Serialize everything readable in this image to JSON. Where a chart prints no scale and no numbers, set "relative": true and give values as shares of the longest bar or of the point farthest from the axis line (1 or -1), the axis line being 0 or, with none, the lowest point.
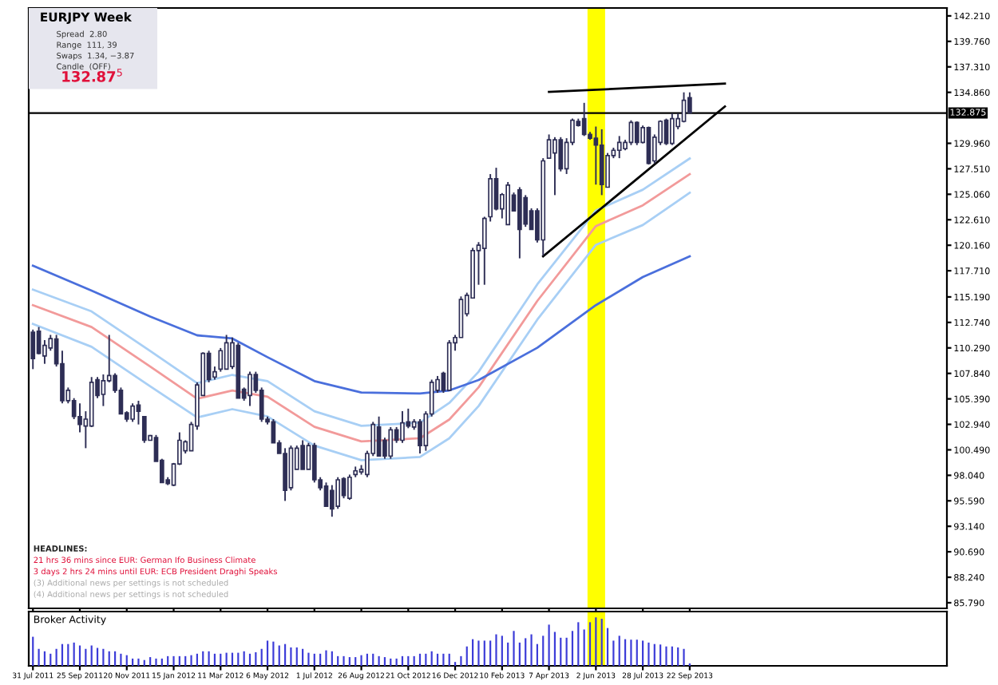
{
  "chart_data": [
    {
      "type": "candlestick",
      "title": "EURJPY Week",
      "color": "#2e2e55",
      "x": [
        "2011-07-31",
        "2011-08-07",
        "2011-08-14",
        "2011-08-21",
        "2011-08-28",
        "2011-09-04",
        "2011-09-11",
        "2011-09-18",
        "2011-09-25",
        "2011-10-02",
        "2011-10-09",
        "2011-10-16",
        "2011-10-23",
        "2011-10-30",
        "2011-11-06",
        "2011-11-13",
        "2011-11-20",
        "2011-11-27",
        "2011-12-04",
        "2011-12-11",
        "2011-12-18",
        "2011-12-25",
        "2012-01-01",
        "2012-01-08",
        "2012-01-15",
        "2012-01-22",
        "2012-01-29",
        "2012-02-05",
        "2012-02-12",
        "2012-02-19",
        "2012-02-26",
        "2012-03-04",
        "2012-03-11",
        "2012-03-18",
        "2012-03-25",
        "2012-04-01",
        "2012-04-08",
        "2012-04-15",
        "2012-04-22",
        "2012-04-29",
        "2012-05-06",
        "2012-05-13",
        "2012-05-20",
        "2012-05-27",
        "2012-06-03",
        "2012-06-10",
        "2012-06-17",
        "2012-06-24",
        "2012-07-01",
        "2012-07-08",
        "2012-07-15",
        "2012-07-22",
        "2012-07-29",
        "2012-08-05",
        "2012-08-12",
        "2012-08-19",
        "2012-08-26",
        "2012-09-02",
        "2012-09-09",
        "2012-09-16",
        "2012-09-23",
        "2012-09-30",
        "2012-10-07",
        "2012-10-14",
        "2012-10-21",
        "2012-10-28",
        "2012-11-04",
        "2012-11-11",
        "2012-11-18",
        "2012-11-25",
        "2012-12-02",
        "2012-12-09",
        "2012-12-16",
        "2012-12-23",
        "2012-12-30",
        "2013-01-06",
        "2013-01-13",
        "2013-01-20",
        "2013-01-27",
        "2013-02-03",
        "2013-02-10",
        "2013-02-17",
        "2013-02-24",
        "2013-03-03",
        "2013-03-10",
        "2013-03-17",
        "2013-03-24",
        "2013-03-31",
        "2013-04-07",
        "2013-04-14",
        "2013-04-21",
        "2013-04-28",
        "2013-05-05",
        "2013-05-12",
        "2013-05-19",
        "2013-05-26",
        "2013-06-02",
        "2013-06-09",
        "2013-06-16",
        "2013-06-23",
        "2013-06-30",
        "2013-07-07",
        "2013-07-14",
        "2013-07-21",
        "2013-07-28",
        "2013-08-04",
        "2013-08-11",
        "2013-08-18",
        "2013-08-25",
        "2013-09-01",
        "2013-09-08",
        "2013-09-15",
        "2013-09-22"
      ],
      "ohlc": [
        [
          111.8,
          112.05,
          108.25,
          109.26
        ],
        [
          111.9,
          112.3,
          109.67,
          109.77
        ],
        [
          109.52,
          111.04,
          108.76,
          110.53
        ],
        [
          110.28,
          111.54,
          110.02,
          111.19
        ],
        [
          111.14,
          111.54,
          108.5,
          108.76
        ],
        [
          108.76,
          110.02,
          104.96,
          105.21
        ],
        [
          105.21,
          106.48,
          104.96,
          106.22
        ],
        [
          105.21,
          105.46,
          103.44,
          103.69
        ],
        [
          103.69,
          104.96,
          102.17,
          102.93
        ],
        [
          102.78,
          104.2,
          100.65,
          103.44
        ],
        [
          102.78,
          107.49,
          102.68,
          106.98
        ],
        [
          107.24,
          107.49,
          105.46,
          105.72
        ],
        [
          105.82,
          107.74,
          104.7,
          107.14
        ],
        [
          107.14,
          111.54,
          106.98,
          107.64
        ],
        [
          107.64,
          107.85,
          105.97,
          106.22
        ],
        [
          106.22,
          106.48,
          103.94,
          103.94
        ],
        [
          104.04,
          104.2,
          103.18,
          103.44
        ],
        [
          103.44,
          104.96,
          103.18,
          104.7
        ],
        [
          104.8,
          105.21,
          102.93,
          104.2
        ],
        [
          103.69,
          103.69,
          101.16,
          101.41
        ],
        [
          101.41,
          101.92,
          101.41,
          101.86
        ],
        [
          101.66,
          101.92,
          99.38,
          99.38
        ],
        [
          99.48,
          99.63,
          97.35,
          97.35
        ],
        [
          97.61,
          97.86,
          97.1,
          97.25
        ],
        [
          97.1,
          99.23,
          97.0,
          99.13
        ],
        [
          99.13,
          102.17,
          99.03,
          101.41
        ],
        [
          100.4,
          101.41,
          100.14,
          101.26
        ],
        [
          100.4,
          103.18,
          100.4,
          102.93
        ],
        [
          102.78,
          106.98,
          102.42,
          106.73
        ],
        [
          105.72,
          109.87,
          105.72,
          109.77
        ],
        [
          109.77,
          110.02,
          106.98,
          107.24
        ],
        [
          107.49,
          108.5,
          107.24,
          108.0
        ],
        [
          108.25,
          110.28,
          108.0,
          110.02
        ],
        [
          108.25,
          111.54,
          108.25,
          110.78
        ],
        [
          108.5,
          111.29,
          108.25,
          110.78
        ],
        [
          110.53,
          110.78,
          105.46,
          105.46
        ],
        [
          106.32,
          106.48,
          105.21,
          105.46
        ],
        [
          105.72,
          108.0,
          104.7,
          107.74
        ],
        [
          107.74,
          108.0,
          105.97,
          106.22
        ],
        [
          106.22,
          106.48,
          103.18,
          103.44
        ],
        [
          103.44,
          103.69,
          102.93,
          103.18
        ],
        [
          103.18,
          103.44,
          101.16,
          101.16
        ],
        [
          101.16,
          101.41,
          100.14,
          100.14
        ],
        [
          100.14,
          100.65,
          95.58,
          96.59
        ],
        [
          96.85,
          100.9,
          96.59,
          100.65
        ],
        [
          98.62,
          100.9,
          98.62,
          100.65
        ],
        [
          100.9,
          101.41,
          98.62,
          98.62
        ],
        [
          98.62,
          101.16,
          98.62,
          100.9
        ],
        [
          100.9,
          101.16,
          97.35,
          97.61
        ],
        [
          97.61,
          97.86,
          96.59,
          96.85
        ],
        [
          97.0,
          97.35,
          95.07,
          95.07
        ],
        [
          96.59,
          97.1,
          94.06,
          94.82
        ],
        [
          95.07,
          97.86,
          94.82,
          97.61
        ],
        [
          97.71,
          97.86,
          95.83,
          96.09
        ],
        [
          95.83,
          98.11,
          95.68,
          97.86
        ],
        [
          98.11,
          98.88,
          97.86,
          98.47
        ],
        [
          98.37,
          99.03,
          98.11,
          98.62
        ],
        [
          98.11,
          100.4,
          97.86,
          100.14
        ],
        [
          100.14,
          103.18,
          99.89,
          102.93
        ],
        [
          102.68,
          103.69,
          99.89,
          99.89
        ],
        [
          101.41,
          101.66,
          99.63,
          99.89
        ],
        [
          99.89,
          102.68,
          99.63,
          102.42
        ],
        [
          102.42,
          102.68,
          101.16,
          101.41
        ],
        [
          101.41,
          104.2,
          101.16,
          103.08
        ],
        [
          103.18,
          104.45,
          102.57,
          102.78
        ],
        [
          102.68,
          103.44,
          102.42,
          103.18
        ],
        [
          103.18,
          103.44,
          100.14,
          100.9
        ],
        [
          100.9,
          104.2,
          100.4,
          103.94
        ],
        [
          103.94,
          107.24,
          103.69,
          106.98
        ],
        [
          106.22,
          107.59,
          105.97,
          107.24
        ],
        [
          107.85,
          108.0,
          105.97,
          106.22
        ],
        [
          106.22,
          111.04,
          106.22,
          110.78
        ],
        [
          110.78,
          111.54,
          110.02,
          111.29
        ],
        [
          111.29,
          115.24,
          111.29,
          114.94
        ],
        [
          113.57,
          115.6,
          113.32,
          115.35
        ],
        [
          115.09,
          119.91,
          115.09,
          119.65
        ],
        [
          119.65,
          120.46,
          116.36,
          120.16
        ],
        [
          119.86,
          122.9,
          116.36,
          122.74
        ],
        [
          122.9,
          127.0,
          122.44,
          126.55
        ],
        [
          126.55,
          127.61,
          123.51,
          123.66
        ],
        [
          123.66,
          125.18,
          122.74,
          125.03
        ],
        [
          122.14,
          126.24,
          122.14,
          125.94
        ],
        [
          124.98,
          125.23,
          123.46,
          123.46
        ],
        [
          125.49,
          125.74,
          118.9,
          121.68
        ],
        [
          124.73,
          124.98,
          121.93,
          122.19
        ],
        [
          123.46,
          123.71,
          121.68,
          121.68
        ],
        [
          123.46,
          123.71,
          120.42,
          120.67
        ],
        [
          120.67,
          128.53,
          119.15,
          128.27
        ],
        [
          128.53,
          130.81,
          128.53,
          130.3
        ],
        [
          129.03,
          130.55,
          124.98,
          130.3
        ],
        [
          130.3,
          130.55,
          127.26,
          127.51
        ],
        [
          127.51,
          130.45,
          127.01,
          130.05
        ],
        [
          130.05,
          132.33,
          129.79,
          132.17
        ],
        [
          132.07,
          132.33,
          131.57,
          131.67
        ],
        [
          132.33,
          133.85,
          130.66,
          130.81
        ],
        [
          130.81,
          131.06,
          130.3,
          130.45
        ],
        [
          130.45,
          131.57,
          125.99,
          129.79
        ],
        [
          129.79,
          131.31,
          124.98,
          125.99
        ],
        [
          125.74,
          129.03,
          125.74,
          128.78
        ],
        [
          128.78,
          129.54,
          128.53,
          129.29
        ],
        [
          129.29,
          130.66,
          128.53,
          130.05
        ],
        [
          129.44,
          130.3,
          129.29,
          130.05
        ],
        [
          130.05,
          132.17,
          129.79,
          131.97
        ],
        [
          131.97,
          132.07,
          129.79,
          130.05
        ],
        [
          130.05,
          131.67,
          129.95,
          131.47
        ],
        [
          131.47,
          131.57,
          127.92,
          128.02
        ],
        [
          128.27,
          130.81,
          128.02,
          130.55
        ],
        [
          130.05,
          132.17,
          129.79,
          132.07
        ],
        [
          132.17,
          132.33,
          129.79,
          129.95
        ],
        [
          129.95,
          132.83,
          129.79,
          132.33
        ],
        [
          131.57,
          132.83,
          131.31,
          132.33
        ],
        [
          132.07,
          134.86,
          131.97,
          134.1
        ],
        [
          134.35,
          134.86,
          132.83,
          132.875
        ]
      ],
      "series": [
        {
          "type": "line",
          "color": "#a8cff5",
          "x": [
            "2011-07-31",
            "2011-10-09",
            "2011-12-18",
            "2012-02-12",
            "2012-03-25",
            "2012-05-06",
            "2012-07-01",
            "2012-08-26",
            "2012-11-04",
            "2012-12-09",
            "2013-01-13",
            "2013-03-24",
            "2013-06-02",
            "2013-07-28",
            "2013-09-22"
          ],
          "values": [
            115.9,
            113.8,
            110.0,
            106.9,
            107.7,
            107.1,
            104.2,
            102.8,
            103.1,
            105.0,
            108.0,
            116.4,
            123.5,
            125.5,
            128.5
          ]
        },
        {
          "type": "line",
          "color": "#f29a9a",
          "x": [
            "2011-07-31",
            "2011-10-09",
            "2011-12-18",
            "2012-02-12",
            "2012-03-25",
            "2012-05-06",
            "2012-07-01",
            "2012-08-26",
            "2012-11-04",
            "2012-12-09",
            "2013-01-13",
            "2013-03-24",
            "2013-06-02",
            "2013-07-28",
            "2013-09-22"
          ],
          "values": [
            114.4,
            112.3,
            108.5,
            105.4,
            106.2,
            105.6,
            102.7,
            101.3,
            101.6,
            103.4,
            106.5,
            114.8,
            122.0,
            124.0,
            127.0
          ]
        },
        {
          "type": "line",
          "color": "#a8cff5",
          "x": [
            "2011-07-31",
            "2011-10-09",
            "2011-12-18",
            "2012-02-12",
            "2012-03-25",
            "2012-05-06",
            "2012-07-01",
            "2012-08-26",
            "2012-11-04",
            "2012-12-09",
            "2013-01-13",
            "2013-03-24",
            "2013-06-02",
            "2013-07-28",
            "2013-09-22"
          ],
          "values": [
            112.6,
            110.4,
            106.6,
            103.6,
            104.4,
            103.7,
            100.9,
            99.5,
            99.8,
            101.6,
            104.7,
            113.0,
            120.2,
            122.1,
            125.2
          ]
        },
        {
          "type": "line",
          "color": "#4a6fdc",
          "x": [
            "2011-07-31",
            "2011-10-09",
            "2011-12-18",
            "2012-02-12",
            "2012-03-25",
            "2012-05-06",
            "2012-07-01",
            "2012-08-26",
            "2012-11-04",
            "2012-12-09",
            "2013-01-13",
            "2013-03-24",
            "2013-06-02",
            "2013-07-28",
            "2013-09-22"
          ],
          "values": [
            118.2,
            115.8,
            113.3,
            111.5,
            111.2,
            109.4,
            107.1,
            106.0,
            105.9,
            106.2,
            107.2,
            110.3,
            114.4,
            117.1,
            119.1
          ]
        },
        {
          "type": "line",
          "color": "#000000",
          "x": [
            "2013-04-07",
            "2013-11-03"
          ],
          "values": [
            134.9,
            135.7
          ]
        },
        {
          "type": "line",
          "color": "#000000",
          "x": [
            "2013-03-31",
            "2013-11-03"
          ],
          "values": [
            119.1,
            133.5
          ]
        }
      ],
      "ref_lines": [
        {
          "axis": "y",
          "value": 132.875,
          "label": "132.875",
          "color": "#000000"
        }
      ],
      "bands": [
        {
          "axis": "x",
          "from": "2013-05-23",
          "to": "2013-06-13",
          "color": "#ffff00"
        }
      ],
      "xlim": [
        "2011-07-26",
        "2014-07-26"
      ],
      "xticks": [
        {
          "value": "2011-07-31",
          "label": null
        },
        {
          "value": "2011-09-25",
          "label": null
        },
        {
          "value": "2011-11-20",
          "label": null
        },
        {
          "value": "2012-01-15",
          "label": null
        },
        {
          "value": "2012-03-11",
          "label": null
        },
        {
          "value": "2012-05-06",
          "label": null
        },
        {
          "value": "2012-07-01",
          "label": null
        },
        {
          "value": "2012-08-26",
          "label": null
        },
        {
          "value": "2012-10-21",
          "label": null
        },
        {
          "value": "2012-12-16",
          "label": null
        },
        {
          "value": "2013-02-10",
          "label": null
        },
        {
          "value": "2013-04-07",
          "label": null
        },
        {
          "value": "2013-06-02",
          "label": null
        },
        {
          "value": "2013-07-28",
          "label": null
        },
        {
          "value": "2013-09-22",
          "label": null
        }
      ],
      "ylim": [
        85.25,
        142.97
      ],
      "yticks": [
        {
          "value": 142.21,
          "label": "142.210"
        },
        {
          "value": 139.76,
          "label": "139.760"
        },
        {
          "value": 137.31,
          "label": "137.310"
        },
        {
          "value": 134.86,
          "label": "134.860"
        },
        {
          "value": 129.96,
          "label": "129.960"
        },
        {
          "value": 127.51,
          "label": "127.510"
        },
        {
          "value": 125.06,
          "label": "125.060"
        },
        {
          "value": 122.61,
          "label": "122.610"
        },
        {
          "value": 120.16,
          "label": "120.160"
        },
        {
          "value": 117.71,
          "label": "117.710"
        },
        {
          "value": 115.19,
          "label": "115.190"
        },
        {
          "value": 112.74,
          "label": "112.740"
        },
        {
          "value": 110.29,
          "label": "110.290"
        },
        {
          "value": 107.84,
          "label": "107.840"
        },
        {
          "value": 105.39,
          "label": "105.390"
        },
        {
          "value": 102.94,
          "label": "102.940"
        },
        {
          "value": 100.49,
          "label": "100.490"
        },
        {
          "value": 98.04,
          "label": "98.040"
        },
        {
          "value": 95.59,
          "label": "95.590"
        },
        {
          "value": 93.14,
          "label": "93.140"
        },
        {
          "value": 90.69,
          "label": "90.690"
        },
        {
          "value": 88.24,
          "label": "88.240"
        },
        {
          "value": 85.79,
          "label": "85.790"
        }
      ],
      "tick_labels": "y",
      "annotations": [
        "Spread  2.80",
        "Range  111, 39",
        "Swaps  1.34, −3.87",
        "Candle  (OFF)",
        "132.87$^{5}$",
        "HEADLINES:",
        "21 hrs 36 mins since EUR: German Ifo Business Climate",
        "3 days 2 hrs 24 mins until EUR: ECB President Draghi Speaks",
        "(3) Additional news per settings is not scheduled",
        "(4) Additional news per settings is not scheduled"
      ]
    },
    {
      "type": "bar",
      "title": "Broker Activity",
      "relative": true,
      "color": "#3c3cd8",
      "x": [
        "2011-07-31",
        "2011-08-07",
        "2011-08-14",
        "2011-08-21",
        "2011-08-28",
        "2011-09-04",
        "2011-09-11",
        "2011-09-18",
        "2011-09-25",
        "2011-10-02",
        "2011-10-09",
        "2011-10-16",
        "2011-10-23",
        "2011-10-30",
        "2011-11-06",
        "2011-11-13",
        "2011-11-20",
        "2011-11-27",
        "2011-12-04",
        "2011-12-11",
        "2011-12-18",
        "2011-12-25",
        "2012-01-01",
        "2012-01-08",
        "2012-01-15",
        "2012-01-22",
        "2012-01-29",
        "2012-02-05",
        "2012-02-12",
        "2012-02-19",
        "2012-02-26",
        "2012-03-04",
        "2012-03-11",
        "2012-03-18",
        "2012-03-25",
        "2012-04-01",
        "2012-04-08",
        "2012-04-15",
        "2012-04-22",
        "2012-04-29",
        "2012-05-06",
        "2012-05-13",
        "2012-05-20",
        "2012-05-27",
        "2012-06-03",
        "2012-06-10",
        "2012-06-17",
        "2012-06-24",
        "2012-07-01",
        "2012-07-08",
        "2012-07-15",
        "2012-07-22",
        "2012-07-29",
        "2012-08-05",
        "2012-08-12",
        "2012-08-19",
        "2012-08-26",
        "2012-09-02",
        "2012-09-09",
        "2012-09-16",
        "2012-09-23",
        "2012-09-30",
        "2012-10-07",
        "2012-10-14",
        "2012-10-21",
        "2012-10-28",
        "2012-11-04",
        "2012-11-11",
        "2012-11-18",
        "2012-11-25",
        "2012-12-02",
        "2012-12-09",
        "2012-12-16",
        "2012-12-23",
        "2012-12-30",
        "2013-01-06",
        "2013-01-13",
        "2013-01-20",
        "2013-01-27",
        "2013-02-03",
        "2013-02-10",
        "2013-02-17",
        "2013-02-24",
        "2013-03-03",
        "2013-03-10",
        "2013-03-17",
        "2013-03-24",
        "2013-03-31",
        "2013-04-07",
        "2013-04-14",
        "2013-04-21",
        "2013-04-28",
        "2013-05-05",
        "2013-05-12",
        "2013-05-19",
        "2013-05-26",
        "2013-06-02",
        "2013-06-09",
        "2013-06-16",
        "2013-06-23",
        "2013-06-30",
        "2013-07-07",
        "2013-07-14",
        "2013-07-21",
        "2013-07-28",
        "2013-08-04",
        "2013-08-11",
        "2013-08-18",
        "2013-08-25",
        "2013-09-01",
        "2013-09-08",
        "2013-09-15",
        "2013-09-22"
      ],
      "values": [
        0.6,
        0.35,
        0.3,
        0.25,
        0.35,
        0.45,
        0.45,
        0.48,
        0.42,
        0.35,
        0.42,
        0.37,
        0.35,
        0.3,
        0.3,
        0.25,
        0.22,
        0.15,
        0.15,
        0.12,
        0.18,
        0.15,
        0.15,
        0.2,
        0.2,
        0.2,
        0.2,
        0.22,
        0.25,
        0.3,
        0.3,
        0.25,
        0.25,
        0.27,
        0.27,
        0.27,
        0.3,
        0.25,
        0.28,
        0.35,
        0.52,
        0.5,
        0.42,
        0.45,
        0.38,
        0.38,
        0.35,
        0.27,
        0.25,
        0.25,
        0.32,
        0.3,
        0.2,
        0.2,
        0.18,
        0.18,
        0.22,
        0.25,
        0.25,
        0.2,
        0.18,
        0.15,
        0.15,
        0.2,
        0.2,
        0.2,
        0.25,
        0.25,
        0.3,
        0.25,
        0.25,
        0.25,
        0.08,
        0.2,
        0.4,
        0.55,
        0.52,
        0.52,
        0.52,
        0.65,
        0.62,
        0.48,
        0.72,
        0.48,
        0.57,
        0.65,
        0.45,
        0.62,
        0.85,
        0.7,
        0.58,
        0.58,
        0.72,
        0.9,
        0.75,
        0.9,
        1.0,
        0.97,
        0.78,
        0.52,
        0.62,
        0.55,
        0.54,
        0.54,
        0.52,
        0.48,
        0.45,
        0.44,
        0.4,
        0.4,
        0.38,
        0.35,
        0.05
      ],
      "bands": [
        {
          "axis": "x",
          "from": "2013-05-23",
          "to": "2013-06-13",
          "color": "#ffff00"
        }
      ],
      "xlim": [
        "2011-07-26",
        "2014-07-26"
      ],
      "xticks": [
        {
          "value": "2011-07-31",
          "label": "31 Jul 2011"
        },
        {
          "value": "2011-09-25",
          "label": "25 Sep 2011"
        },
        {
          "value": "2011-11-20",
          "label": "20 Nov 2011"
        },
        {
          "value": "2012-01-15",
          "label": "15 Jan 2012"
        },
        {
          "value": "2012-03-11",
          "label": "11 Mar 2012"
        },
        {
          "value": "2012-05-06",
          "label": "6 May 2012"
        },
        {
          "value": "2012-07-01",
          "label": "1 Jul 2012"
        },
        {
          "value": "2012-08-26",
          "label": "26 Aug 2012"
        },
        {
          "value": "2012-10-21",
          "label": "21 Oct 2012"
        },
        {
          "value": "2012-12-16",
          "label": "16 Dec 2012"
        },
        {
          "value": "2013-02-10",
          "label": "10 Feb 2013"
        },
        {
          "value": "2013-04-07",
          "label": "7 Apr 2013"
        },
        {
          "value": "2013-06-02",
          "label": "2 Jun 2013"
        },
        {
          "value": "2013-07-28",
          "label": "28 Jul 2013"
        },
        {
          "value": "2013-09-22",
          "label": "22 Sep 2013"
        }
      ],
      "tick_labels": "x"
    }
  ]
}
